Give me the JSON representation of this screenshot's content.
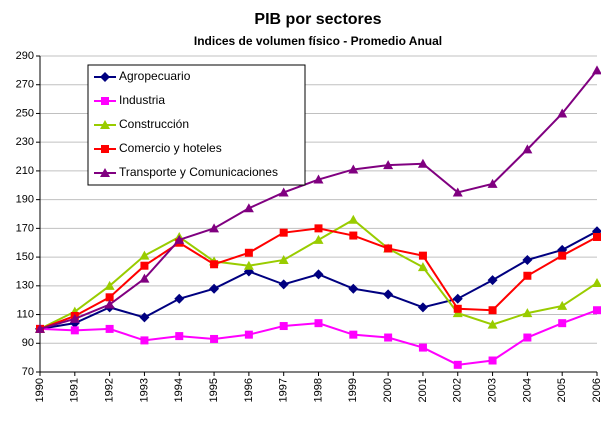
{
  "chart_data": {
    "type": "line",
    "title": "PIB por sectores",
    "subtitle": "Indices de volumen físico - Promedio Anual",
    "categories": [
      "1990",
      "1991",
      "1992",
      "1993",
      "1994",
      "1995",
      "1996",
      "1997",
      "1998",
      "1999",
      "2000",
      "2001",
      "2002",
      "2003",
      "2004",
      "2005",
      "2006"
    ],
    "series": [
      {
        "name": "Agropecuario",
        "color": "#000080",
        "marker": "diamond",
        "values": [
          100,
          104,
          115,
          108,
          121,
          128,
          140,
          131,
          138,
          128,
          124,
          115,
          121,
          134,
          148,
          155,
          168
        ]
      },
      {
        "name": "Industria",
        "color": "#ff00ff",
        "marker": "square",
        "values": [
          100,
          99,
          100,
          92,
          95,
          93,
          96,
          102,
          104,
          96,
          94,
          87,
          75,
          78,
          94,
          104,
          113
        ]
      },
      {
        "name": "Construcción",
        "color": "#99cc00",
        "marker": "triangle",
        "values": [
          100,
          112,
          130,
          151,
          164,
          147,
          144,
          148,
          162,
          176,
          156,
          143,
          111,
          103,
          111,
          116,
          132
        ]
      },
      {
        "name": "Comercio y hoteles",
        "color": "#ff0000",
        "marker": "square",
        "values": [
          100,
          109,
          122,
          144,
          160,
          145,
          153,
          167,
          170,
          165,
          156,
          151,
          114,
          113,
          137,
          151,
          164
        ]
      },
      {
        "name": "Transporte y Comunicaciones",
        "color": "#800080",
        "marker": "triangle",
        "values": [
          100,
          107,
          117,
          135,
          162,
          170,
          184,
          195,
          204,
          211,
          214,
          215,
          195,
          201,
          225,
          250,
          280
        ]
      }
    ],
    "ylim": [
      70,
      290
    ],
    "yticks": [
      70,
      90,
      110,
      130,
      150,
      170,
      190,
      210,
      230,
      250,
      270,
      290
    ],
    "grid": true,
    "legend": "top-left"
  }
}
